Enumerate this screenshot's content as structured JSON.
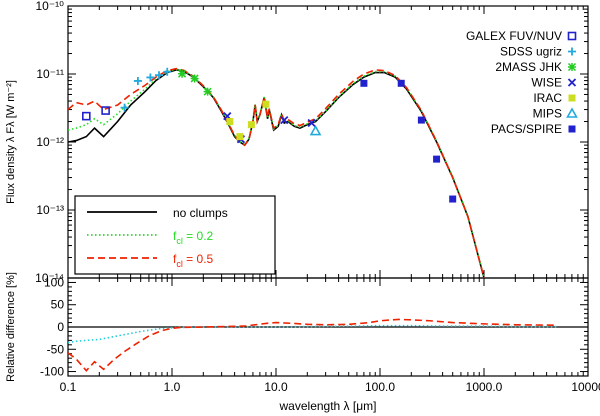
{
  "chart_data": {
    "type": "line",
    "title": "",
    "xlabel": "wavelength λ [μm]",
    "x_scale": "log",
    "xlim": [
      0.1,
      10000
    ],
    "x_tick_labels": [
      "0.1",
      "1.0",
      "10.0",
      "100.0",
      "1000.0",
      "10000"
    ],
    "panels": [
      {
        "name": "sed",
        "ylabel": "Flux density λ Fλ [W m⁻²]",
        "y_scale": "log",
        "ylim": [
          1e-14,
          1e-10
        ],
        "y_tick_labels": [
          "10⁻¹⁴",
          "10⁻¹³",
          "10⁻¹²",
          "10⁻¹¹",
          "10⁻¹⁰"
        ],
        "series": [
          {
            "name": "no clumps",
            "style": "solid",
            "color": "#000000",
            "x": [
              0.1,
              0.12,
              0.15,
              0.18,
              0.22,
              0.3,
              0.4,
              0.55,
              0.7,
              0.9,
              1.1,
              1.3,
              1.6,
              2.0,
              2.5,
              3.0,
              3.5,
              4.0,
              4.5,
              5.0,
              5.5,
              6.0,
              6.3,
              6.6,
              7.0,
              7.7,
              8.3,
              8.6,
              9.5,
              10.5,
              11.3,
              12.0,
              13.0,
              15.0,
              17.0,
              20.0,
              24.0,
              30.0,
              40.0,
              55.0,
              70.0,
              90.0,
              110.0,
              140.0,
              180.0,
              250.0,
              350.0,
              500.0,
              700.0,
              1000.0
            ],
            "y": [
              1e-12,
              1.05e-12,
              1.2e-12,
              1.6e-12,
              1.2e-12,
              2e-12,
              3.5e-12,
              5.5e-12,
              8e-12,
              1.05e-11,
              1.15e-11,
              1.1e-11,
              9e-12,
              6.5e-12,
              4.5e-12,
              2.8e-12,
              1.8e-12,
              1.2e-12,
              1e-12,
              9e-13,
              1.1e-12,
              2e-12,
              3.5e-12,
              2e-12,
              2.5e-12,
              4.5e-12,
              2.2e-12,
              3e-12,
              1.5e-12,
              1.7e-12,
              2.5e-12,
              1.9e-12,
              2e-12,
              1.7e-12,
              1.6e-12,
              1.8e-12,
              2e-12,
              2.8e-12,
              4.5e-12,
              7e-12,
              9e-12,
              1.05e-11,
              1.05e-11,
              9e-12,
              6e-12,
              2.8e-12,
              1e-12,
              3e-13,
              8e-14,
              1e-14
            ]
          },
          {
            "name": "f_cl = 0.2",
            "style": "dotted",
            "color": "#22dd22",
            "x": [
              0.1,
              0.12,
              0.15,
              0.18,
              0.22,
              0.3,
              0.4,
              0.55,
              0.7,
              0.9,
              1.1,
              1.3,
              1.6,
              2.0,
              2.5,
              3.0,
              3.5,
              4.0,
              4.5,
              5.0,
              5.5,
              6.0,
              6.3,
              6.6,
              7.0,
              7.7,
              8.3,
              8.6,
              9.5,
              10.5,
              11.3,
              12.0,
              13.0,
              15.0,
              17.0,
              20.0,
              24.0,
              30.0,
              40.0,
              55.0,
              70.0,
              90.0,
              110.0,
              140.0,
              180.0,
              250.0,
              350.0,
              500.0,
              700.0,
              1000.0
            ],
            "y": [
              1.5e-12,
              1.6e-12,
              1.8e-12,
              2.2e-12,
              1.8e-12,
              2.6e-12,
              4e-12,
              6e-12,
              8.5e-12,
              1.08e-11,
              1.17e-11,
              1.12e-11,
              9.2e-12,
              6.7e-12,
              4.6e-12,
              2.9e-12,
              1.85e-12,
              1.25e-12,
              1.02e-12,
              9.2e-13,
              1.12e-12,
              2.05e-12,
              3.6e-12,
              2.05e-12,
              2.55e-12,
              4.6e-12,
              2.25e-12,
              3.05e-12,
              1.55e-12,
              1.75e-12,
              2.6e-12,
              1.95e-12,
              2.05e-12,
              1.75e-12,
              1.65e-12,
              1.85e-12,
              2.05e-12,
              2.85e-12,
              4.6e-12,
              7.2e-12,
              9.3e-12,
              1.08e-11,
              1.08e-11,
              9.3e-12,
              6.2e-12,
              2.9e-12,
              1.03e-12,
              3.1e-13,
              8.2e-14,
              1.02e-14
            ]
          },
          {
            "name": "f_cl = 0.5",
            "style": "dashed",
            "color": "#ee2200",
            "x": [
              0.1,
              0.12,
              0.15,
              0.18,
              0.22,
              0.3,
              0.4,
              0.55,
              0.7,
              0.9,
              1.1,
              1.3,
              1.6,
              2.0,
              2.5,
              3.0,
              3.5,
              4.0,
              4.5,
              5.0,
              5.5,
              6.0,
              6.3,
              6.6,
              7.0,
              7.7,
              8.3,
              8.6,
              9.5,
              10.5,
              11.3,
              12.0,
              13.0,
              15.0,
              17.0,
              20.0,
              24.0,
              30.0,
              40.0,
              55.0,
              70.0,
              90.0,
              110.0,
              140.0,
              180.0,
              250.0,
              350.0,
              500.0,
              700.0,
              1000.0
            ],
            "y": [
              3e-12,
              3.8e-12,
              3.5e-12,
              4e-12,
              3e-12,
              3.5e-12,
              5e-12,
              6.8e-12,
              9e-12,
              1.12e-11,
              1.2e-11,
              1.13e-11,
              9.3e-12,
              6.7e-12,
              4.6e-12,
              2.9e-12,
              1.85e-12,
              1.25e-12,
              1e-12,
              9e-13,
              1.1e-12,
              2e-12,
              3.5e-12,
              2e-12,
              2.5e-12,
              4.6e-12,
              2.3e-12,
              3.1e-12,
              1.6e-12,
              1.8e-12,
              2.6e-12,
              2.05e-12,
              2.15e-12,
              1.85e-12,
              1.75e-12,
              1.95e-12,
              2.2e-12,
              3.1e-12,
              5e-12,
              7.8e-12,
              1e-11,
              1.15e-11,
              1.12e-11,
              9.5e-12,
              6.3e-12,
              2.9e-12,
              1.02e-12,
              3e-13,
              8e-14,
              1e-14
            ]
          }
        ],
        "observations": [
          {
            "name": "GALEX FUV/NUV",
            "marker": "open-square",
            "color": "#2222cc",
            "x": [
              0.15,
              0.23
            ],
            "y": [
              2.4e-12,
              2.9e-12
            ]
          },
          {
            "name": "SDSS ugriz",
            "marker": "plus",
            "color": "#22aadd",
            "x": [
              0.35,
              0.47,
              0.62,
              0.75,
              0.9
            ],
            "y": [
              3.2e-12,
              7.9e-12,
              8.9e-12,
              9.6e-12,
              1.08e-11
            ]
          },
          {
            "name": "2MASS JHK",
            "marker": "asterisk",
            "color": "#22cc22",
            "x": [
              1.25,
              1.65,
              2.2
            ],
            "y": [
              1.01e-11,
              8.6e-12,
              5.5e-12
            ]
          },
          {
            "name": "WISE",
            "marker": "cross",
            "color": "#2222cc",
            "x": [
              3.4,
              4.6,
              12.0,
              22.0
            ],
            "y": [
              2.4e-12,
              1.1e-12,
              2.1e-12,
              1.9e-12
            ]
          },
          {
            "name": "IRAC",
            "marker": "filled-square",
            "color": "#ccdd22",
            "x": [
              3.6,
              4.5,
              5.8,
              8.0
            ],
            "y": [
              2e-12,
              1.2e-12,
              1.8e-12,
              3.6e-12
            ]
          },
          {
            "name": "MIPS",
            "marker": "open-triangle",
            "color": "#22aadd",
            "x": [
              24.0
            ],
            "y": [
              1.45e-12
            ]
          },
          {
            "name": "PACS/SPIRE",
            "marker": "filled-square",
            "color": "#2222cc",
            "x": [
              70.0,
              160.0,
              250.0,
              350.0,
              500.0
            ],
            "y": [
              7.3e-12,
              7.3e-12,
              2.1e-12,
              5.6e-13,
              1.45e-13
            ]
          }
        ]
      },
      {
        "name": "residual",
        "ylabel": "Relative difference [%]",
        "y_scale": "linear",
        "ylim": [
          -110,
          110
        ],
        "y_ticks": [
          -100,
          -50,
          0,
          50,
          100
        ],
        "series": [
          {
            "name": "f_cl = 0.2",
            "style": "dotted",
            "color": "#22ccdd",
            "x": [
              0.1,
              0.12,
              0.15,
              0.2,
              0.3,
              0.5,
              0.8,
              1.2,
              2,
              5,
              10,
              20,
              50,
              100,
              200,
              500,
              1000,
              2000,
              5000
            ],
            "y": [
              -35,
              -32,
              -30,
              -28,
              -20,
              -10,
              -3,
              -1,
              0,
              0,
              0,
              1,
              2,
              3,
              3,
              2,
              2,
              1,
              1
            ]
          },
          {
            "name": "f_cl = 0.5",
            "style": "dashed",
            "color": "#ee2200",
            "x": [
              0.1,
              0.12,
              0.15,
              0.18,
              0.22,
              0.28,
              0.35,
              0.45,
              0.6,
              0.8,
              1.0,
              1.2,
              2,
              5,
              8,
              10,
              15,
              20,
              30,
              50,
              80,
              100,
              150,
              200,
              300,
              500,
              1000,
              2000,
              5000
            ],
            "y": [
              -58,
              -72,
              -98,
              -78,
              -95,
              -72,
              -55,
              -38,
              -20,
              -8,
              -3,
              -1,
              0,
              2,
              8,
              10,
              8,
              6,
              5,
              6,
              10,
              14,
              17,
              16,
              14,
              10,
              7,
              5,
              4
            ]
          }
        ]
      }
    ],
    "legend": {
      "placement": "bottom-left",
      "entries": [
        {
          "label": "no clumps",
          "style": "solid",
          "color": "#000000"
        },
        {
          "label_base": "f",
          "label_sub": "cl",
          "label_value": " = 0.2",
          "style": "dotted",
          "color": "#22dd22"
        },
        {
          "label_base": "f",
          "label_sub": "cl",
          "label_value": " = 0.5",
          "style": "dashed",
          "color": "#ee2200"
        }
      ]
    },
    "obs_legend": {
      "placement": "top-right"
    }
  }
}
